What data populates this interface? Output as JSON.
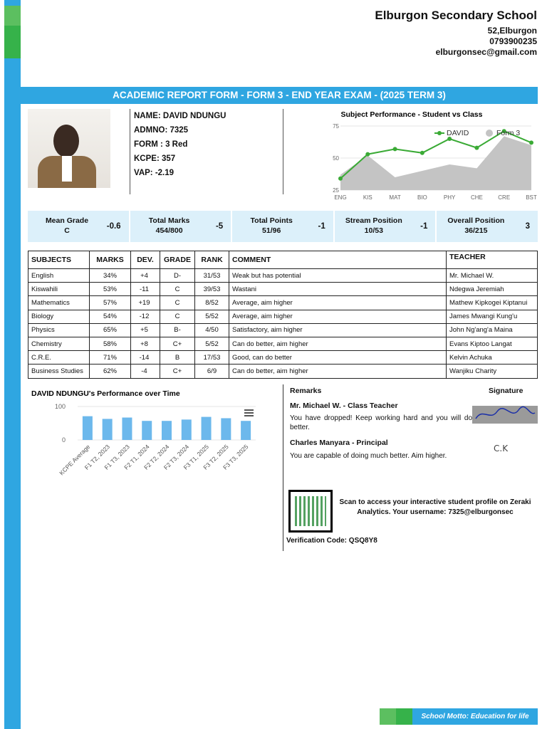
{
  "header": {
    "school": "Elburgon Secondary School",
    "address": "52,Elburgon",
    "phone": "0793900235",
    "email": "elburgonsec@gmail.com"
  },
  "banner": "ACADEMIC REPORT FORM - FORM 3 - END YEAR EXAM - (2025 TERM 3)",
  "student": {
    "name": "NAME: DAVID NDUNGU",
    "admno": "ADMNO: 7325",
    "form": "FORM : 3 Red",
    "kcpe": "KCPE: 357",
    "vap": "VAP: -2.19"
  },
  "summary": [
    {
      "label": "Mean Grade",
      "value": "C",
      "change": -0.6
    },
    {
      "label": "Total Marks",
      "value": "454/800",
      "change": -5
    },
    {
      "label": "Total Points",
      "value": "51/96",
      "change": -1
    },
    {
      "label": "Stream Position",
      "value": "10/53",
      "change": -1
    },
    {
      "label": "Overall Position",
      "value": "36/215",
      "change": 3
    }
  ],
  "table": {
    "headers": [
      "SUBJECTS",
      "MARKS",
      "DEV.",
      "GRADE",
      "RANK",
      "COMMENT",
      "TEACHER"
    ],
    "rows": [
      [
        "English",
        "34%",
        "+4",
        "D-",
        "31/53",
        "Weak but has potential",
        "Mr. Michael W."
      ],
      [
        "Kiswahili",
        "53%",
        "-11",
        "C",
        "39/53",
        "Wastani",
        "Ndegwa Jeremiah"
      ],
      [
        "Mathematics",
        "57%",
        "+19",
        "C",
        "8/52",
        "Average, aim higher",
        "Mathew Kipkogei Kiptanui"
      ],
      [
        "Biology",
        "54%",
        "-12",
        "C",
        "5/52",
        "Average, aim higher",
        "James Mwangi Kung'u"
      ],
      [
        "Physics",
        "65%",
        "+5",
        "B-",
        "4/50",
        "Satisfactory, aim higher",
        "John Ng'ang'a Maina"
      ],
      [
        "Chemistry",
        "58%",
        "+8",
        "C+",
        "5/52",
        "Can do better, aim higher",
        "Evans Kiptoo Langat"
      ],
      [
        "C.R.E.",
        "71%",
        "-14",
        "B",
        "17/53",
        "Good, can do better",
        "Kelvin Achuka"
      ],
      [
        "Business Studies",
        "62%",
        "-4",
        "C+",
        "6/9",
        "Can do better, aim higher",
        "Wanjiku Charity"
      ]
    ]
  },
  "chart_data": [
    {
      "type": "line",
      "title": "Subject Performance - Student vs Class",
      "categories": [
        "ENG",
        "KIS",
        "MAT",
        "BIO",
        "PHY",
        "CHE",
        "CRE",
        "BST"
      ],
      "series": [
        {
          "name": "DAVID",
          "color": "#3aaa35",
          "values": [
            34,
            53,
            57,
            54,
            65,
            58,
            71,
            62
          ]
        },
        {
          "name": "Form 3",
          "color": "#c4c4c4",
          "values": [
            37,
            52,
            35,
            40,
            45,
            42,
            67,
            60
          ]
        }
      ],
      "ylim": [
        25,
        75
      ],
      "yticks": [
        25,
        50,
        75
      ]
    },
    {
      "type": "bar",
      "title": "DAVID NDUNGU's Performance over Time",
      "categories": [
        "KCPE Average",
        "F1 T2, 2023",
        "F1 T3, 2023",
        "F2 T1, 2024",
        "F2 T2, 2024",
        "F2 T3, 2024",
        "F3 T1, 2025",
        "F3 T2, 2025",
        "F3 T3, 2025"
      ],
      "values": [
        71,
        63,
        67,
        57,
        57,
        61,
        69,
        65,
        57
      ],
      "color": "#6cb8ec",
      "ylim": [
        0,
        100
      ],
      "yticks": [
        0,
        100
      ]
    }
  ],
  "remarks": {
    "heading": "Remarks",
    "signature": "Signature",
    "teacher": "Mr. Michael W. - Class Teacher",
    "teacher_comment": "You have dropped! Keep working hard and you will do better.",
    "principal": "Charles Manyara - Principal",
    "principal_comment": "You are capable of doing much better. Aim higher.",
    "principal_signature": "C.K"
  },
  "qr": {
    "text": "Scan to access your interactive student profile on Zeraki Analytics. Your username: 7325@elburgonsec",
    "code": "Verification Code: QSQ8Y8"
  },
  "footer": "School Motto: Education for life"
}
